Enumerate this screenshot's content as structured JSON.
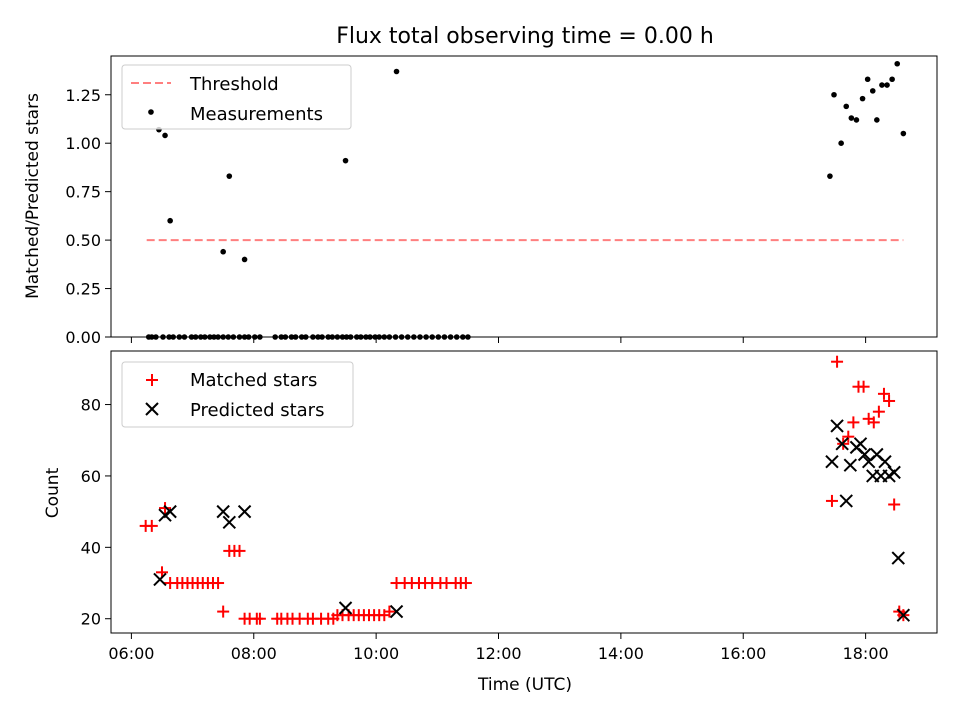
{
  "chart_data": [
    {
      "type": "scatter",
      "title": "Flux total observing time = 0.00 h",
      "xlabel": "",
      "ylabel": "Matched/Predicted stars",
      "xlim": [
        "05:40",
        "19:10"
      ],
      "ylim": [
        0,
        1.45
      ],
      "yticks": [
        0.0,
        0.25,
        0.5,
        0.75,
        1.0,
        1.25
      ],
      "ytick_labels": [
        "0.00",
        "0.25",
        "0.50",
        "0.75",
        "1.00",
        "1.25"
      ],
      "legend_position": "upper left",
      "series": [
        {
          "name": "Threshold",
          "kind": "line",
          "style": "dashed",
          "color": "#ff7f7f",
          "x": [
            "06:15",
            "18:37"
          ],
          "y": [
            0.5,
            0.5
          ]
        },
        {
          "name": "Measurements",
          "kind": "scatter",
          "marker": "dot",
          "color": "#000000",
          "x": [
            "06:17",
            "06:20",
            "06:24",
            "06:31",
            "06:37",
            "06:41",
            "06:47",
            "06:52",
            "06:59",
            "07:03",
            "07:08",
            "07:12",
            "07:17",
            "07:21",
            "07:25",
            "07:30",
            "07:35",
            "07:40",
            "07:46",
            "07:51",
            "07:55",
            "08:01",
            "08:06",
            "08:21",
            "08:27",
            "08:31",
            "08:37",
            "08:41",
            "08:47",
            "08:51",
            "08:58",
            "09:03",
            "09:07",
            "09:13",
            "09:17",
            "09:22",
            "09:27",
            "09:31",
            "09:35",
            "09:41",
            "09:45",
            "09:50",
            "09:54",
            "09:59",
            "10:03",
            "10:08",
            "10:13",
            "10:19",
            "10:25",
            "10:31",
            "10:37",
            "10:43",
            "10:49",
            "10:55",
            "11:01",
            "11:07",
            "11:13",
            "11:19",
            "11:25",
            "11:30",
            "06:19",
            "06:27",
            "06:33",
            "06:38",
            "07:30",
            "07:36",
            "07:51",
            "09:30",
            "10:20",
            "17:25",
            "17:29",
            "17:36",
            "17:41",
            "17:46",
            "17:51",
            "17:57",
            "18:02",
            "18:07",
            "18:11",
            "18:16",
            "18:21",
            "18:26",
            "18:31",
            "18:37"
          ],
          "y": [
            0,
            0,
            0,
            0,
            0,
            0,
            0,
            0,
            0,
            0,
            0,
            0,
            0,
            0,
            0,
            0,
            0,
            0,
            0,
            0,
            0,
            0,
            0,
            0,
            0,
            0,
            0,
            0,
            0,
            0,
            0,
            0,
            0,
            0,
            0,
            0,
            0,
            0,
            0,
            0,
            0,
            0,
            0,
            0,
            0,
            0,
            0,
            0,
            0,
            0,
            0,
            0,
            0,
            0,
            0,
            0,
            0,
            0,
            0,
            0,
            1.16,
            1.07,
            1.04,
            0.6,
            0.44,
            0.83,
            0.4,
            0.91,
            1.37,
            0.83,
            1.25,
            1.0,
            1.19,
            1.13,
            1.12,
            1.23,
            1.33,
            1.27,
            1.12,
            1.3,
            1.3,
            1.33,
            1.41,
            1.05
          ]
        }
      ]
    },
    {
      "type": "scatter",
      "title": "",
      "xlabel": "Time (UTC)",
      "ylabel": "Count",
      "xlim": [
        "05:40",
        "19:10"
      ],
      "ylim": [
        16,
        95
      ],
      "xticks": [
        "06:00",
        "08:00",
        "10:00",
        "12:00",
        "14:00",
        "16:00",
        "18:00"
      ],
      "yticks": [
        20,
        40,
        60,
        80
      ],
      "ytick_labels": [
        "20",
        "40",
        "60",
        "80"
      ],
      "legend_position": "upper left",
      "series": [
        {
          "name": "Matched stars",
          "kind": "scatter",
          "marker": "plus",
          "color": "#ff0000",
          "x": [
            "06:14",
            "06:20",
            "06:30",
            "06:33",
            "06:38",
            "06:45",
            "06:50",
            "06:55",
            "07:00",
            "07:05",
            "07:10",
            "07:15",
            "07:20",
            "07:25",
            "07:30",
            "07:36",
            "07:41",
            "07:46",
            "07:51",
            "07:56",
            "08:03",
            "08:06",
            "08:23",
            "08:27",
            "08:33",
            "08:38",
            "08:45",
            "08:53",
            "08:58",
            "09:06",
            "09:13",
            "09:18",
            "09:22",
            "09:27",
            "09:33",
            "09:38",
            "09:43",
            "09:48",
            "09:53",
            "09:58",
            "10:03",
            "10:08",
            "10:13",
            "10:20",
            "10:28",
            "10:35",
            "10:42",
            "10:48",
            "10:55",
            "11:03",
            "11:09",
            "11:18",
            "11:23",
            "11:28",
            "17:27",
            "17:32",
            "17:38",
            "17:43",
            "17:48",
            "17:53",
            "17:58",
            "18:03",
            "18:08",
            "18:13",
            "18:18",
            "18:23",
            "18:28",
            "18:33",
            "18:37"
          ],
          "y": [
            46,
            46,
            33,
            51,
            30,
            30,
            30,
            30,
            30,
            30,
            30,
            30,
            30,
            30,
            22,
            39,
            39,
            39,
            20,
            20,
            20,
            20,
            20,
            20,
            20,
            20,
            20,
            20,
            20,
            20,
            20,
            20,
            21,
            21,
            21,
            21,
            21,
            21,
            21,
            21,
            21,
            21,
            22,
            30,
            30,
            30,
            30,
            30,
            30,
            30,
            30,
            30,
            30,
            30,
            53,
            92,
            69,
            71,
            75,
            85,
            85,
            76,
            75,
            78,
            83,
            81,
            52,
            22,
            21
          ]
        },
        {
          "name": "Predicted stars",
          "kind": "scatter",
          "marker": "x",
          "color": "#000000",
          "x": [
            "06:28",
            "06:33",
            "06:38",
            "07:30",
            "07:36",
            "07:51",
            "09:30",
            "10:20",
            "17:27",
            "17:32",
            "17:37",
            "17:41",
            "17:45",
            "17:51",
            "17:55",
            "17:59",
            "18:03",
            "18:07",
            "18:11",
            "18:15",
            "18:19",
            "18:23",
            "18:28",
            "18:32",
            "18:37"
          ],
          "y": [
            31,
            49,
            50,
            50,
            47,
            50,
            23,
            22,
            64,
            74,
            69,
            53,
            63,
            68,
            69,
            66,
            64,
            60,
            66,
            60,
            64,
            60,
            61,
            37,
            21
          ]
        }
      ]
    }
  ]
}
